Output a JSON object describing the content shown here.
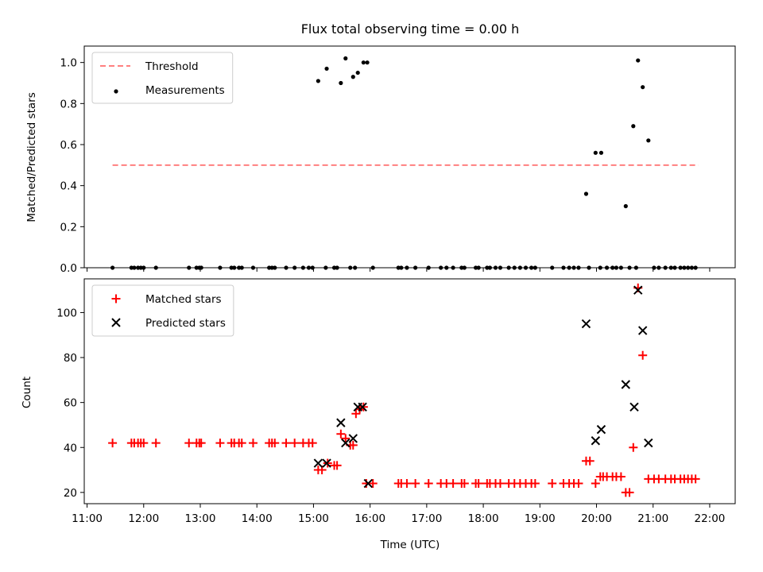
{
  "chart_data": [
    {
      "type": "scatter",
      "title": "Flux total observing time = 0.00 h",
      "xlabel": "",
      "ylabel": "Matched/Predicted stars",
      "xlim": [
        "10:57",
        "22:27"
      ],
      "ylim": [
        0,
        1.08
      ],
      "yticks": [
        0.0,
        0.2,
        0.4,
        0.6,
        0.8,
        1.0
      ],
      "ytick_labels": [
        "0.0",
        "0.2",
        "0.4",
        "0.6",
        "0.8",
        "1.0"
      ],
      "grid": false,
      "legend_position": "upper left",
      "series": [
        {
          "name": "Threshold",
          "kind": "line",
          "style": "dashed",
          "color": "#ff7f7f",
          "x": [
            "11:27",
            "21:48"
          ],
          "y": [
            0.5,
            0.5
          ]
        },
        {
          "name": "Measurements",
          "kind": "scatter",
          "marker": "dot",
          "color": "#000000",
          "points": [
            [
              "11:27",
              0.0
            ],
            [
              "11:47",
              0.0
            ],
            [
              "11:50",
              0.0
            ],
            [
              "11:54",
              0.0
            ],
            [
              "11:57",
              0.0
            ],
            [
              "12:00",
              0.0
            ],
            [
              "12:13",
              0.0
            ],
            [
              "12:48",
              0.0
            ],
            [
              "12:56",
              0.0
            ],
            [
              "12:59",
              0.0
            ],
            [
              "13:01",
              0.0
            ],
            [
              "13:21",
              0.0
            ],
            [
              "13:33",
              0.0
            ],
            [
              "13:36",
              0.0
            ],
            [
              "13:41",
              0.0
            ],
            [
              "13:44",
              0.0
            ],
            [
              "13:56",
              0.0
            ],
            [
              "14:13",
              0.0
            ],
            [
              "14:16",
              0.0
            ],
            [
              "14:19",
              0.0
            ],
            [
              "14:31",
              0.0
            ],
            [
              "14:40",
              0.0
            ],
            [
              "14:49",
              0.0
            ],
            [
              "14:55",
              0.0
            ],
            [
              "14:59",
              0.0
            ],
            [
              "15:05",
              0.91
            ],
            [
              "15:13",
              0.0
            ],
            [
              "15:14",
              0.97
            ],
            [
              "15:22",
              0.0
            ],
            [
              "15:25",
              0.0
            ],
            [
              "15:29",
              0.9
            ],
            [
              "15:34",
              1.02
            ],
            [
              "15:39",
              0.0
            ],
            [
              "15:42",
              0.93
            ],
            [
              "15:44",
              0.0
            ],
            [
              "15:47",
              0.95
            ],
            [
              "15:53",
              1.0
            ],
            [
              "15:57",
              1.0
            ],
            [
              "16:03",
              0.0
            ],
            [
              "16:30",
              0.0
            ],
            [
              "16:33",
              0.0
            ],
            [
              "16:39",
              0.0
            ],
            [
              "16:48",
              0.0
            ],
            [
              "17:02",
              0.0
            ],
            [
              "17:15",
              0.0
            ],
            [
              "17:21",
              0.0
            ],
            [
              "17:28",
              0.0
            ],
            [
              "17:37",
              0.0
            ],
            [
              "17:40",
              0.0
            ],
            [
              "17:52",
              0.0
            ],
            [
              "17:55",
              0.0
            ],
            [
              "18:04",
              0.0
            ],
            [
              "18:07",
              0.0
            ],
            [
              "18:13",
              0.0
            ],
            [
              "18:18",
              0.0
            ],
            [
              "18:27",
              0.0
            ],
            [
              "18:33",
              0.0
            ],
            [
              "18:39",
              0.0
            ],
            [
              "18:45",
              0.0
            ],
            [
              "18:51",
              0.0
            ],
            [
              "18:55",
              0.0
            ],
            [
              "19:13",
              0.0
            ],
            [
              "19:25",
              0.0
            ],
            [
              "19:31",
              0.0
            ],
            [
              "19:36",
              0.0
            ],
            [
              "19:41",
              0.0
            ],
            [
              "19:49",
              0.36
            ],
            [
              "19:52",
              0.0
            ],
            [
              "19:59",
              0.56
            ],
            [
              "20:04",
              0.0
            ],
            [
              "20:05",
              0.56
            ],
            [
              "20:11",
              0.0
            ],
            [
              "20:17",
              0.0
            ],
            [
              "20:21",
              0.0
            ],
            [
              "20:26",
              0.0
            ],
            [
              "20:31",
              0.3
            ],
            [
              "20:35",
              0.0
            ],
            [
              "20:39",
              0.69
            ],
            [
              "20:42",
              0.0
            ],
            [
              "20:44",
              1.01
            ],
            [
              "20:49",
              0.88
            ],
            [
              "20:55",
              0.62
            ],
            [
              "21:01",
              0.0
            ],
            [
              "21:06",
              0.0
            ],
            [
              "21:13",
              0.0
            ],
            [
              "21:19",
              0.0
            ],
            [
              "21:23",
              0.0
            ],
            [
              "21:29",
              0.0
            ],
            [
              "21:33",
              0.0
            ],
            [
              "21:37",
              0.0
            ],
            [
              "21:41",
              0.0
            ],
            [
              "21:45",
              0.0
            ]
          ]
        }
      ]
    },
    {
      "type": "scatter",
      "title": "",
      "xlabel": "Time (UTC)",
      "ylabel": "Count",
      "xlim": [
        "10:57",
        "22:27"
      ],
      "ylim": [
        15,
        115
      ],
      "yticks": [
        20,
        40,
        60,
        80,
        100
      ],
      "ytick_labels": [
        "20",
        "40",
        "60",
        "80",
        "100"
      ],
      "xticks": [
        "11:00",
        "12:00",
        "13:00",
        "14:00",
        "15:00",
        "16:00",
        "17:00",
        "18:00",
        "19:00",
        "20:00",
        "21:00",
        "22:00"
      ],
      "grid": false,
      "legend_position": "upper left",
      "series": [
        {
          "name": "Matched stars",
          "kind": "scatter",
          "marker": "plus",
          "color": "#ff0000",
          "points": [
            [
              "11:27",
              42
            ],
            [
              "11:47",
              42
            ],
            [
              "11:50",
              42
            ],
            [
              "11:54",
              42
            ],
            [
              "11:57",
              42
            ],
            [
              "12:00",
              42
            ],
            [
              "12:13",
              42
            ],
            [
              "12:48",
              42
            ],
            [
              "12:56",
              42
            ],
            [
              "12:59",
              42
            ],
            [
              "13:01",
              42
            ],
            [
              "13:21",
              42
            ],
            [
              "13:33",
              42
            ],
            [
              "13:36",
              42
            ],
            [
              "13:41",
              42
            ],
            [
              "13:44",
              42
            ],
            [
              "13:56",
              42
            ],
            [
              "14:13",
              42
            ],
            [
              "14:16",
              42
            ],
            [
              "14:19",
              42
            ],
            [
              "14:31",
              42
            ],
            [
              "14:40",
              42
            ],
            [
              "14:49",
              42
            ],
            [
              "14:55",
              42
            ],
            [
              "14:59",
              42
            ],
            [
              "15:05",
              30
            ],
            [
              "15:09",
              30
            ],
            [
              "15:15",
              33
            ],
            [
              "15:22",
              32
            ],
            [
              "15:25",
              32
            ],
            [
              "15:29",
              46
            ],
            [
              "15:34",
              44
            ],
            [
              "15:39",
              41
            ],
            [
              "15:42",
              41
            ],
            [
              "15:45",
              55
            ],
            [
              "15:49",
              57
            ],
            [
              "15:53",
              58
            ],
            [
              "15:56",
              24
            ],
            [
              "16:03",
              24
            ],
            [
              "16:30",
              24
            ],
            [
              "16:33",
              24
            ],
            [
              "16:39",
              24
            ],
            [
              "16:48",
              24
            ],
            [
              "17:02",
              24
            ],
            [
              "17:15",
              24
            ],
            [
              "17:21",
              24
            ],
            [
              "17:28",
              24
            ],
            [
              "17:37",
              24
            ],
            [
              "17:40",
              24
            ],
            [
              "17:52",
              24
            ],
            [
              "17:55",
              24
            ],
            [
              "18:04",
              24
            ],
            [
              "18:07",
              24
            ],
            [
              "18:13",
              24
            ],
            [
              "18:18",
              24
            ],
            [
              "18:27",
              24
            ],
            [
              "18:33",
              24
            ],
            [
              "18:39",
              24
            ],
            [
              "18:45",
              24
            ],
            [
              "18:51",
              24
            ],
            [
              "18:55",
              24
            ],
            [
              "19:13",
              24
            ],
            [
              "19:25",
              24
            ],
            [
              "19:31",
              24
            ],
            [
              "19:36",
              24
            ],
            [
              "19:41",
              24
            ],
            [
              "19:49",
              34
            ],
            [
              "19:53",
              34
            ],
            [
              "19:59",
              24
            ],
            [
              "20:04",
              27
            ],
            [
              "20:07",
              27
            ],
            [
              "20:11",
              27
            ],
            [
              "20:17",
              27
            ],
            [
              "20:21",
              27
            ],
            [
              "20:26",
              27
            ],
            [
              "20:31",
              20
            ],
            [
              "20:35",
              20
            ],
            [
              "20:39",
              40
            ],
            [
              "20:44",
              111
            ],
            [
              "20:49",
              81
            ],
            [
              "20:55",
              26
            ],
            [
              "21:01",
              26
            ],
            [
              "21:06",
              26
            ],
            [
              "21:13",
              26
            ],
            [
              "21:19",
              26
            ],
            [
              "21:23",
              26
            ],
            [
              "21:29",
              26
            ],
            [
              "21:33",
              26
            ],
            [
              "21:37",
              26
            ],
            [
              "21:41",
              26
            ],
            [
              "21:45",
              26
            ]
          ]
        },
        {
          "name": "Predicted stars",
          "kind": "scatter",
          "marker": "x",
          "color": "#000000",
          "points": [
            [
              "15:05",
              33
            ],
            [
              "15:14",
              33
            ],
            [
              "15:29",
              51
            ],
            [
              "15:34",
              42
            ],
            [
              "15:42",
              44
            ],
            [
              "15:47",
              58
            ],
            [
              "15:52",
              58
            ],
            [
              "15:58",
              24
            ],
            [
              "19:49",
              95
            ],
            [
              "19:59",
              43
            ],
            [
              "20:05",
              48
            ],
            [
              "20:31",
              68
            ],
            [
              "20:40",
              58
            ],
            [
              "20:44",
              110
            ],
            [
              "20:49",
              92
            ],
            [
              "20:55",
              42
            ]
          ]
        }
      ]
    }
  ]
}
